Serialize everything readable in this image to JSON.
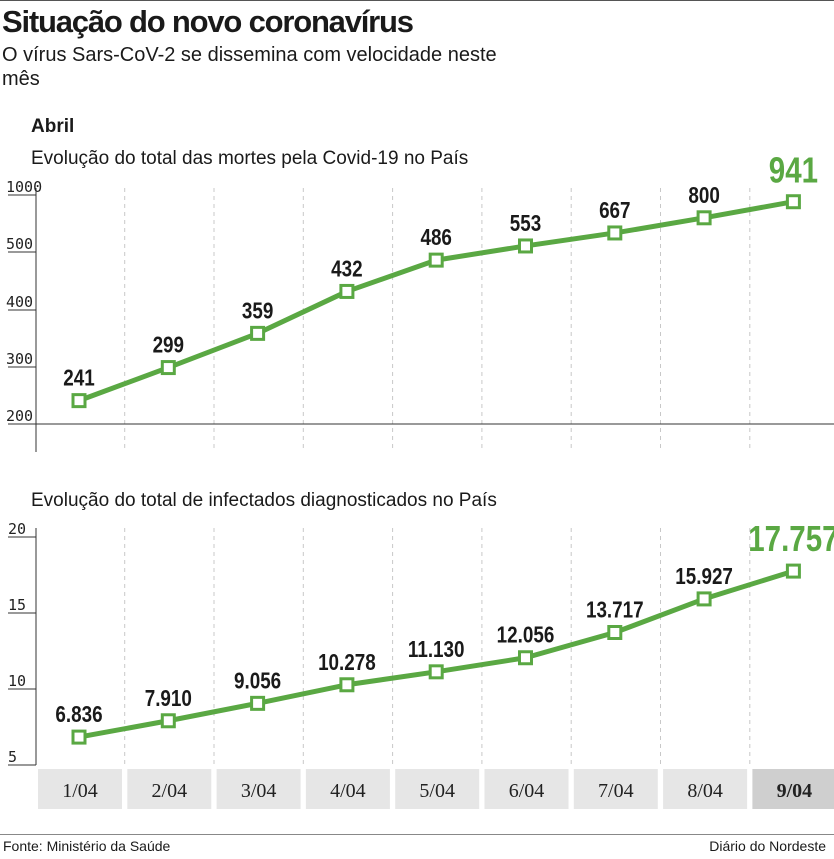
{
  "header": {
    "title": "Situação do novo coronavírus",
    "subtitle": "O vírus Sars-CoV-2 se dissemina com velocidade neste mês",
    "month": "Abril"
  },
  "chart_data": [
    {
      "type": "line",
      "title": "Evolução do total das mortes pela Covid-19 no País",
      "categories": [
        "1/04",
        "2/04",
        "3/04",
        "4/04",
        "5/04",
        "6/04",
        "7/04",
        "8/04",
        "9/04"
      ],
      "values": [
        241,
        299,
        359,
        432,
        486,
        553,
        667,
        800,
        941
      ],
      "value_labels": [
        "241",
        "299",
        "359",
        "432",
        "486",
        "553",
        "667",
        "800",
        "941"
      ],
      "y_ticks": [
        "200",
        "300",
        "400",
        "500",
        "1000"
      ],
      "xlabel": "",
      "ylabel": "",
      "grid": "vertical dashed"
    },
    {
      "type": "line",
      "title": "Evolução do total de infectados diagnosticados no País",
      "categories": [
        "1/04",
        "2/04",
        "3/04",
        "4/04",
        "5/04",
        "6/04",
        "7/04",
        "8/04",
        "9/04"
      ],
      "values": [
        6836,
        7910,
        9056,
        10278,
        11130,
        12056,
        13717,
        15927,
        17757
      ],
      "value_labels": [
        "6.836",
        "7.910",
        "9.056",
        "10.278",
        "11.130",
        "12.056",
        "13.717",
        "15.927",
        "17.757"
      ],
      "y_ticks": [
        "5",
        "10",
        "15",
        "20"
      ],
      "ylim": [
        5000,
        20000
      ],
      "xlabel": "",
      "ylabel": "",
      "grid": "vertical dashed"
    }
  ],
  "colors": {
    "line": "#5aa843",
    "highlight_text": "#5aa843",
    "category_bg": "#e6e6e6",
    "category_bg_active": "#cfcfcf",
    "grid": "#c8c8c8"
  },
  "footer": {
    "source": "Fonte: Ministério da Saúde",
    "credit": "Diário do Nordeste"
  }
}
